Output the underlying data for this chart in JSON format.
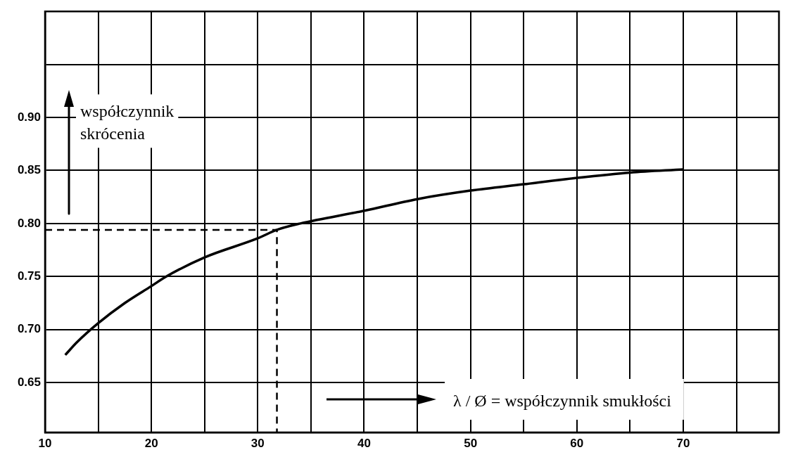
{
  "chart_data": {
    "type": "line",
    "xlabel": "λ / Ø = współczynnik smukłości",
    "ylabel": "współczynnik skrócenia",
    "xlim": [
      10,
      79
    ],
    "ylim": [
      0.603,
      1.0
    ],
    "xticks": [
      10,
      {
        "value": 15,
        "label": null
      },
      20,
      {
        "value": 25,
        "label": null
      },
      30,
      {
        "value": 35,
        "label": null
      },
      40,
      {
        "value": 45,
        "label": null
      },
      50,
      {
        "value": 55,
        "label": null
      },
      60,
      {
        "value": 65,
        "label": null
      },
      70,
      {
        "value": 75,
        "label": null
      }
    ],
    "yticks": [
      {
        "value": 0.65,
        "label": "0.65"
      },
      {
        "value": 0.7,
        "label": "0.70"
      },
      {
        "value": 0.75,
        "label": "0.75"
      },
      {
        "value": 0.8,
        "label": "0.80"
      },
      {
        "value": 0.85,
        "label": "0.85"
      },
      {
        "value": 0.9,
        "label": "0.90"
      },
      {
        "value": 0.95,
        "label": null
      }
    ],
    "grid": true,
    "legend": false,
    "marker": "none",
    "series": [
      {
        "color": "#000000",
        "line_style": "solid",
        "x": [
          11.9,
          13,
          15,
          17.5,
          20,
          21.4,
          25,
          30,
          31.8,
          34,
          40,
          45,
          50,
          55,
          60,
          65,
          70
        ],
        "values": [
          0.676,
          0.688,
          0.706,
          0.725,
          0.741,
          0.75,
          0.768,
          0.786,
          0.794,
          0.8,
          0.812,
          0.823,
          0.831,
          0.837,
          0.843,
          0.848,
          0.851
        ]
      },
      {
        "color": "#000000",
        "line_style": "dashed",
        "x": [
          10,
          31.8,
          31.8
        ],
        "values": [
          0.794,
          0.794,
          0.603
        ]
      }
    ]
  }
}
